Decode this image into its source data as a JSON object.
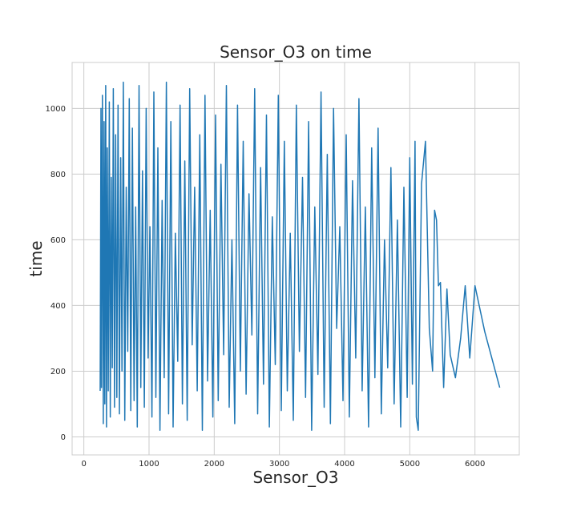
{
  "chart_data": {
    "type": "line",
    "title": "Sensor_O3 on time",
    "xlabel": "Sensor_O3",
    "ylabel": "time",
    "xlim": [
      -180,
      6680
    ],
    "ylim": [
      -55,
      1140
    ],
    "xticks": [
      0,
      1000,
      2000,
      3000,
      4000,
      5000,
      6000
    ],
    "yticks": [
      0,
      200,
      400,
      600,
      800,
      1000
    ],
    "xtick_labels": [
      "0",
      "1000",
      "2000",
      "3000",
      "4000",
      "5000",
      "6000"
    ],
    "ytick_labels": [
      "0",
      "200",
      "400",
      "600",
      "800",
      "1000"
    ],
    "grid": true,
    "style": "whitegrid",
    "series": [
      {
        "color": "#1f77b4",
        "x": [
          250,
          262,
          270,
          285,
          298,
          310,
          322,
          335,
          348,
          360,
          375,
          390,
          405,
          420,
          436,
          452,
          470,
          488,
          506,
          525,
          545,
          565,
          585,
          606,
          628,
          650,
          673,
          697,
          720,
          745,
          770,
          795,
          820,
          846,
          873,
          900,
          928,
          956,
          985,
          1014,
          1044,
          1074,
          1105,
          1136,
          1168,
          1200,
          1233,
          1266,
          1300,
          1334,
          1369,
          1404,
          1440,
          1476,
          1512,
          1549,
          1586,
          1624,
          1662,
          1700,
          1739,
          1778,
          1818,
          1858,
          1898,
          1938,
          1979,
          2020,
          2061,
          2103,
          2145,
          2187,
          2229,
          2272,
          2315,
          2358,
          2401,
          2445,
          2489,
          2533,
          2577,
          2621,
          2666,
          2711,
          2756,
          2801,
          2846,
          2891,
          2937,
          2983,
          3029,
          3075,
          3121,
          3167,
          3213,
          3260,
          3307,
          3354,
          3401,
          3448,
          3495,
          3542,
          3590,
          3638,
          3686,
          3734,
          3782,
          3830,
          3878,
          3926,
          3975,
          4024,
          4073,
          4122,
          4171,
          4220,
          4269,
          4318,
          4367,
          4416,
          4465,
          4514,
          4563,
          4612,
          4661,
          4710,
          4760,
          4810,
          4860,
          4910,
          4960,
          5000,
          5040,
          5080,
          5100,
          5130,
          5180,
          5240,
          5300,
          5350,
          5380,
          5410,
          5440,
          5470,
          5520,
          5570,
          5620,
          5700,
          5780,
          5850,
          5920,
          6000,
          6150,
          6380
        ],
        "y": [
          140,
          1000,
          150,
          1040,
          40,
          960,
          100,
          1070,
          30,
          880,
          140,
          1020,
          60,
          790,
          210,
          1060,
          90,
          920,
          120,
          1010,
          70,
          850,
          200,
          1080,
          50,
          760,
          260,
          1030,
          80,
          940,
          110,
          700,
          30,
          1070,
          150,
          810,
          90,
          1000,
          240,
          640,
          60,
          1050,
          120,
          880,
          20,
          720,
          180,
          1080,
          70,
          960,
          30,
          620,
          230,
          1010,
          100,
          840,
          50,
          1060,
          280,
          760,
          140,
          920,
          20,
          1040,
          170,
          690,
          60,
          980,
          110,
          830,
          250,
          1070,
          90,
          600,
          40,
          1010,
          200,
          900,
          130,
          740,
          310,
          1060,
          70,
          820,
          160,
          980,
          30,
          670,
          220,
          1040,
          80,
          900,
          140,
          620,
          50,
          1010,
          260,
          790,
          120,
          960,
          20,
          700,
          190,
          1050,
          90,
          860,
          40,
          1000,
          330,
          640,
          110,
          920,
          60,
          780,
          240,
          1030,
          140,
          700,
          30,
          880,
          180,
          940,
          70,
          600,
          210,
          820,
          100,
          660,
          30,
          760,
          120,
          850,
          160,
          900,
          60,
          20,
          770,
          900,
          330,
          200,
          690,
          660,
          460,
          470,
          150,
          450,
          250,
          180,
          300,
          460,
          240,
          460,
          320,
          150
        ]
      }
    ]
  }
}
